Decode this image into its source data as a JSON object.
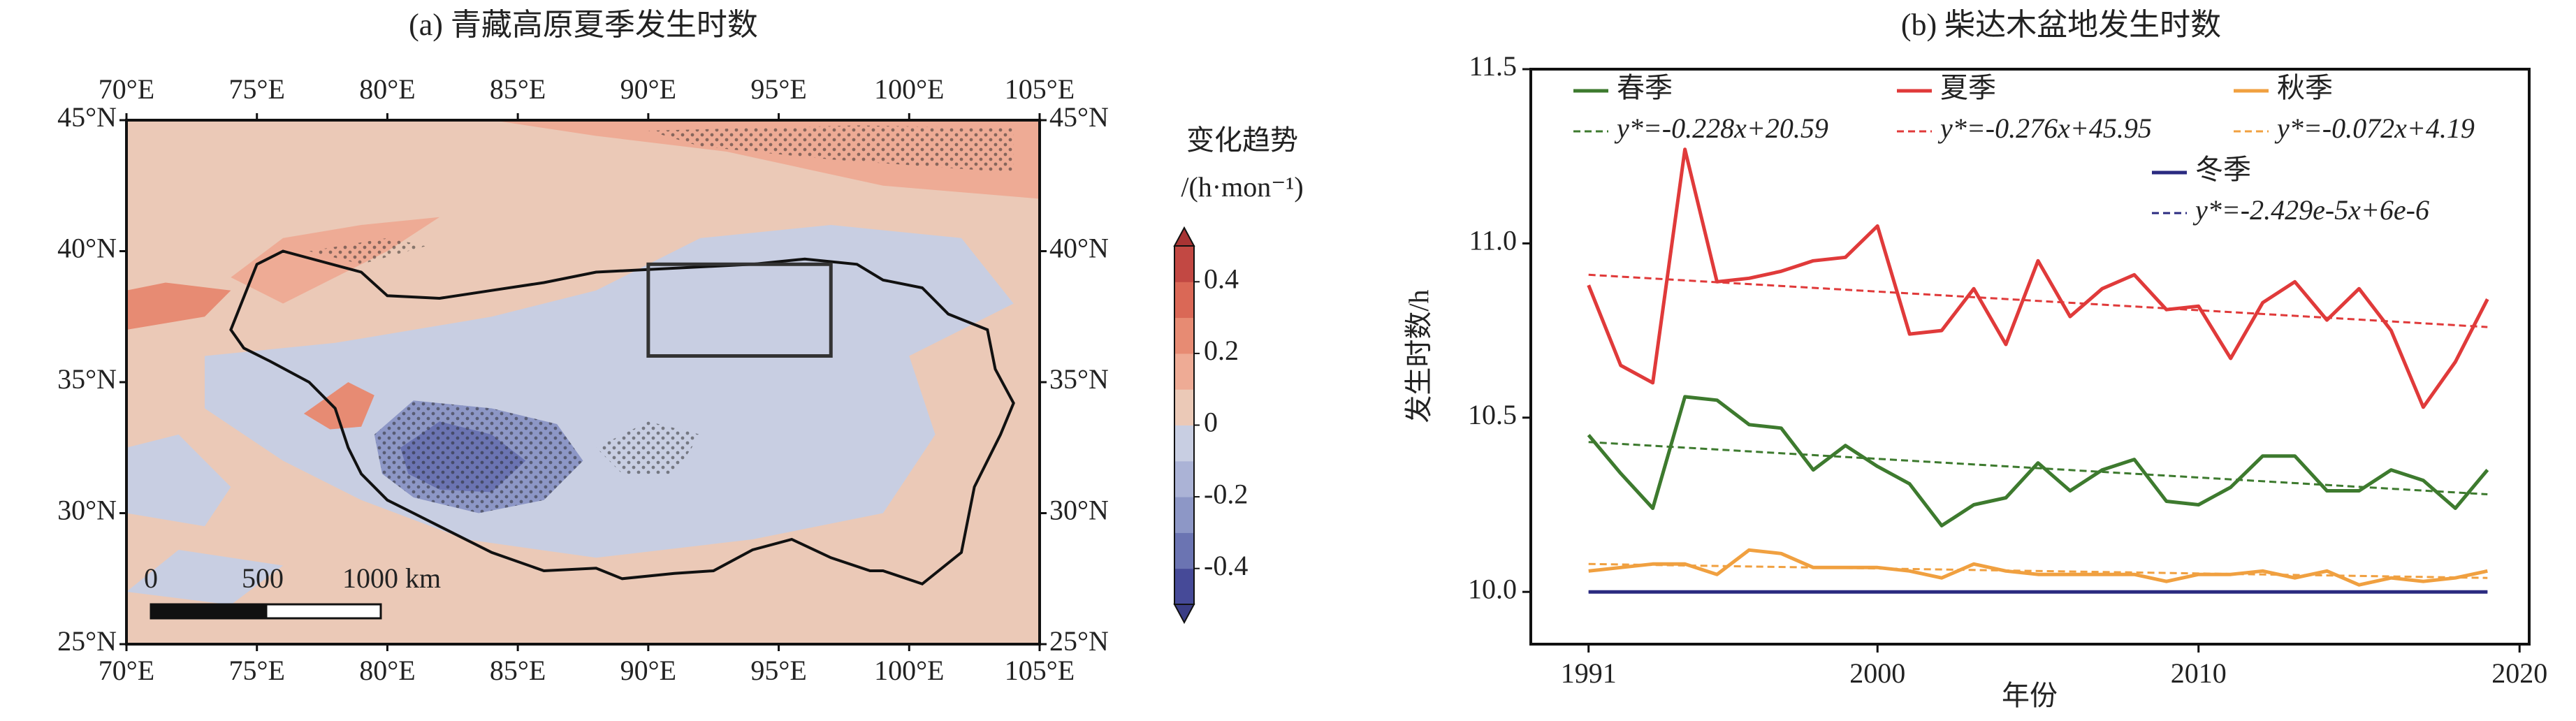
{
  "chart_data": [
    {
      "type": "map",
      "title": "(a) 青藏高原夏季发生时数",
      "colorbar_title": [
        "变化趋势",
        "/(h·mon⁻¹)"
      ],
      "lonlim": [
        70,
        105
      ],
      "latlim": [
        25,
        45
      ],
      "lonticks": [
        {
          "value": 70,
          "label": "70°E"
        },
        {
          "value": 75,
          "label": "75°E"
        },
        {
          "value": 80,
          "label": "80°E"
        },
        {
          "value": 85,
          "label": "85°E"
        },
        {
          "value": 90,
          "label": "90°E"
        },
        {
          "value": 95,
          "label": "95°E"
        },
        {
          "value": 100,
          "label": "100°E"
        },
        {
          "value": 105,
          "label": "105°E"
        }
      ],
      "latticks": [
        {
          "value": 45,
          "label": "45°N"
        },
        {
          "value": 40,
          "label": "40°N"
        },
        {
          "value": 35,
          "label": "35°N"
        },
        {
          "value": 30,
          "label": "30°N"
        },
        {
          "value": 25,
          "label": "25°N"
        }
      ],
      "clim": [
        -0.5,
        0.5
      ],
      "cticks": [
        0.4,
        0.2,
        0,
        -0.2,
        -0.4
      ],
      "colors": [
        "#464a98",
        "#6b74b2",
        "#8d97c6",
        "#abb3d6",
        "#c8cee2",
        "#ebc9b7",
        "#eeab95",
        "#e78b73",
        "#da6856",
        "#c24843"
      ],
      "scale_labels": [
        "0",
        "500",
        "1000 km"
      ]
    },
    {
      "type": "line",
      "title": "(b) 柴达木盆地发生时数",
      "xlabel": "年份",
      "ylabel": "发生时数/h",
      "xlim": [
        1989.2,
        2020.3
      ],
      "ylim": [
        9.85,
        11.5
      ],
      "xticks": [
        1991,
        2000,
        2010,
        2020
      ],
      "yticks": [
        {
          "value": 10,
          "label": "10.0"
        },
        10.5,
        {
          "value": 11,
          "label": "11.0"
        },
        11.5
      ],
      "x": [
        1991,
        1992,
        1993,
        1994,
        1995,
        1996,
        1997,
        1998,
        1999,
        2000,
        2001,
        2002,
        2003,
        2004,
        2005,
        2006,
        2007,
        2008,
        2009,
        2010,
        2011,
        2012,
        2013,
        2014,
        2015,
        2016,
        2017,
        2018,
        2019
      ],
      "series": [
        {
          "name": "春季",
          "color": "#3d7a2e",
          "trend_label": "y*=-0.228x+20.59",
          "trend": [
            10.43,
            10.28
          ],
          "values": [
            10.45,
            10.34,
            10.24,
            10.56,
            10.55,
            10.48,
            10.47,
            10.35,
            10.42,
            10.36,
            10.31,
            10.19,
            10.25,
            10.27,
            10.37,
            10.29,
            10.35,
            10.38,
            10.26,
            10.25,
            10.3,
            10.39,
            10.39,
            10.29,
            10.29,
            10.35,
            10.32,
            10.24,
            10.35
          ]
        },
        {
          "name": "夏季",
          "color": "#e03a3a",
          "trend_label": "y*=-0.276x+45.95",
          "trend": [
            10.91,
            10.76
          ],
          "values": [
            10.88,
            10.65,
            10.6,
            11.27,
            10.89,
            10.9,
            10.92,
            10.95,
            10.96,
            11.05,
            10.74,
            10.75,
            10.87,
            10.71,
            10.95,
            10.79,
            10.87,
            10.91,
            10.81,
            10.82,
            10.67,
            10.83,
            10.89,
            10.78,
            10.87,
            10.75,
            10.53,
            10.66,
            10.84
          ]
        },
        {
          "name": "秋季",
          "color": "#f0a040",
          "trend_label": "y*=-0.072x+4.19",
          "trend": [
            10.08,
            10.04
          ],
          "values": [
            10.06,
            10.07,
            10.08,
            10.08,
            10.05,
            10.12,
            10.11,
            10.07,
            10.07,
            10.07,
            10.06,
            10.04,
            10.08,
            10.06,
            10.05,
            10.05,
            10.05,
            10.05,
            10.03,
            10.05,
            10.05,
            10.06,
            10.04,
            10.06,
            10.02,
            10.04,
            10.03,
            10.04,
            10.06
          ]
        },
        {
          "name": "冬季",
          "color": "#2b2b80",
          "trend_label": "y*=-2.429e-5x+6e-6",
          "trend": [
            10.0,
            10.0
          ],
          "values": [
            10,
            10,
            10,
            10,
            10,
            10,
            10,
            10,
            10,
            10,
            10,
            10,
            10,
            10,
            10,
            10,
            10,
            10,
            10,
            10,
            10,
            10,
            10,
            10,
            10,
            10,
            10,
            10,
            10
          ]
        }
      ]
    }
  ]
}
